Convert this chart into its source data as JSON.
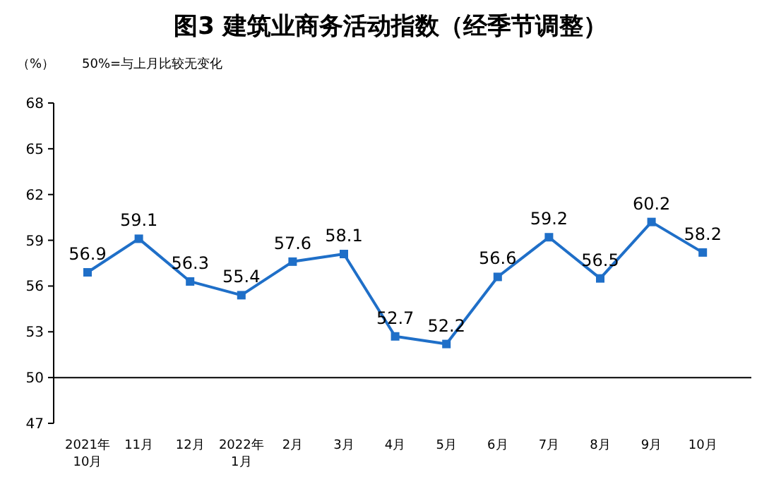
{
  "chart_data": {
    "type": "line",
    "title": "图3  建筑业商务活动指数（经季节调整）",
    "ylabel": "（%）",
    "annotations": [
      "50%=与上月比较无变化"
    ],
    "categories": [
      "2021年\n10月",
      "11月",
      "12月",
      "2022年\n1月",
      "2月",
      "3月",
      "4月",
      "5月",
      "6月",
      "7月",
      "8月",
      "9月",
      "10月"
    ],
    "series": [
      {
        "color": "#1f6fc8",
        "values": [
          56.9,
          59.1,
          56.3,
          55.4,
          57.6,
          58.1,
          52.7,
          52.2,
          56.6,
          59.2,
          56.5,
          60.2,
          58.2
        ]
      }
    ],
    "ylim": [
      47,
      68
    ],
    "yticks": [
      47,
      50,
      53,
      56,
      59,
      62,
      65,
      68
    ],
    "ref_lines": [
      {
        "axis": "y",
        "value": 50,
        "color": "#000000"
      }
    ],
    "data_labels": true,
    "marker": "square",
    "line_style": "solid",
    "grid": false
  }
}
